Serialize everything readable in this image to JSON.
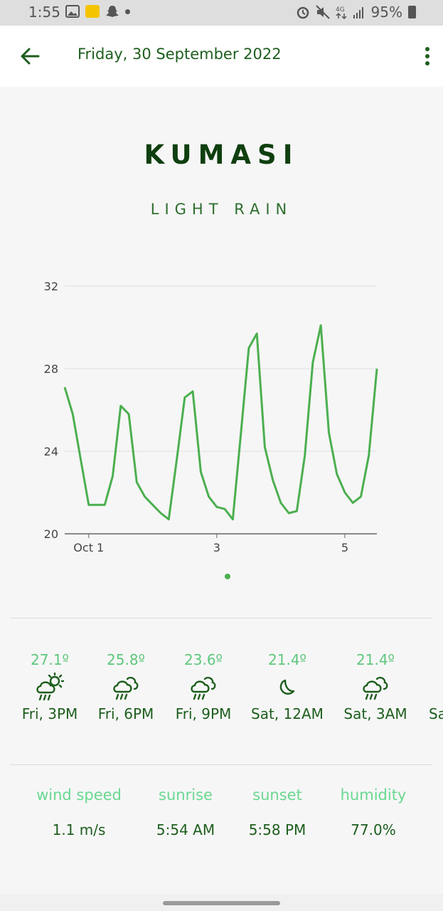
{
  "status_bar": {
    "time": "1:55",
    "battery": "95%"
  },
  "app_bar": {
    "title": "Friday, 30 September 2022"
  },
  "location": {
    "city": "KUMASI",
    "condition": "LIGHT RAIN"
  },
  "chart_data": {
    "type": "line",
    "title": "",
    "xlabel": "",
    "ylabel": "",
    "ylim": [
      20,
      32
    ],
    "yticks": [
      20,
      24,
      28,
      32
    ],
    "xtick_labels": [
      "Oct 1",
      "3",
      "5"
    ],
    "grid": true,
    "line_color": "#4caf50",
    "series": [
      {
        "values": [
          27.1,
          25.8,
          23.6,
          21.4,
          21.4,
          21.4,
          22.8,
          26.2,
          25.8,
          22.5,
          21.8,
          21.4,
          21.0,
          20.7,
          23.6,
          26.6,
          26.9,
          23.0,
          21.8,
          21.3,
          21.2,
          20.7,
          24.8,
          29.0,
          29.7,
          24.2,
          22.6,
          21.5,
          21.0,
          21.1,
          23.8,
          28.3,
          30.1,
          24.9,
          22.9,
          22.0,
          21.5,
          21.8,
          23.8,
          28.0
        ]
      }
    ]
  },
  "forecast": [
    {
      "temp": "27.1º",
      "icon": "sun-cloud-rain-icon",
      "time": "Fri, 3PM"
    },
    {
      "temp": "25.8º",
      "icon": "cloud-rain-icon",
      "time": "Fri, 6PM"
    },
    {
      "temp": "23.6º",
      "icon": "cloud-rain-icon",
      "time": "Fri, 9PM"
    },
    {
      "temp": "21.4º",
      "icon": "moon-icon",
      "time": "Sat, 12AM"
    },
    {
      "temp": "21.4º",
      "icon": "cloud-rain-icon",
      "time": "Sat, 3AM"
    },
    {
      "temp": "",
      "icon": "",
      "time": "Sa"
    }
  ],
  "stats": [
    {
      "label": "wind speed",
      "value": "1.1 m/s"
    },
    {
      "label": "sunrise",
      "value": "5:54 AM"
    },
    {
      "label": "sunset",
      "value": "5:58 PM"
    },
    {
      "label": "humidity",
      "value": "77.0%"
    }
  ]
}
